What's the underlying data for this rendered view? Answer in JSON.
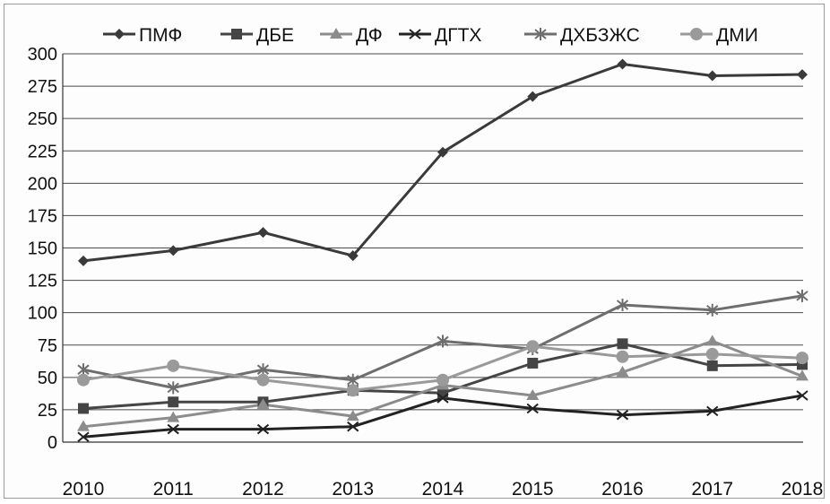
{
  "chart_data": {
    "type": "line",
    "title": "",
    "xlabel": "",
    "ylabel": "",
    "x": [
      "2010",
      "2011",
      "2012",
      "2013",
      "2014",
      "2015",
      "2016",
      "2017",
      "2018"
    ],
    "ylim": [
      0,
      300
    ],
    "yticks": [
      0,
      25,
      50,
      75,
      100,
      125,
      150,
      175,
      200,
      225,
      250,
      275,
      300
    ],
    "grid": true,
    "legend_position": "top",
    "series": [
      {
        "name": "ПМФ",
        "marker": "diamond",
        "color": "#3a3a3a",
        "values": [
          140,
          148,
          162,
          144,
          224,
          267,
          292,
          283,
          284
        ]
      },
      {
        "name": "ДБЕ",
        "marker": "square",
        "color": "#454545",
        "values": [
          26,
          31,
          31,
          40,
          38,
          61,
          76,
          59,
          60
        ]
      },
      {
        "name": "ДФ",
        "marker": "triangle",
        "color": "#8c8c8c",
        "values": [
          12,
          19,
          29,
          20,
          44,
          36,
          54,
          78,
          51
        ]
      },
      {
        "name": "ДГТХ",
        "marker": "x",
        "color": "#222222",
        "values": [
          4,
          10,
          10,
          12,
          34,
          26,
          21,
          24,
          36
        ]
      },
      {
        "name": "ДХБЗЖС",
        "marker": "star",
        "color": "#6e6e6e",
        "values": [
          56,
          42,
          56,
          48,
          78,
          72,
          106,
          102,
          113
        ]
      },
      {
        "name": "ДМИ",
        "marker": "circle",
        "color": "#9a9a9a",
        "values": [
          48,
          59,
          48,
          40,
          48,
          74,
          66,
          68,
          65
        ]
      }
    ]
  }
}
